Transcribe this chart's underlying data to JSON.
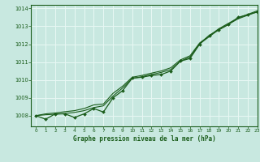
{
  "title": "Graphe pression niveau de la mer (hPa)",
  "bg_color": "#c8e8e0",
  "grid_color": "#e8f8f4",
  "line_color": "#1a5c1a",
  "xlim": [
    -0.5,
    23
  ],
  "ylim": [
    1007.4,
    1014.2
  ],
  "xticks": [
    0,
    1,
    2,
    3,
    4,
    5,
    6,
    7,
    8,
    9,
    10,
    11,
    12,
    13,
    14,
    15,
    16,
    17,
    18,
    19,
    20,
    21,
    22,
    23
  ],
  "yticks": [
    1008,
    1009,
    1010,
    1011,
    1012,
    1013,
    1014
  ],
  "x": [
    0,
    1,
    2,
    3,
    4,
    5,
    6,
    7,
    8,
    9,
    10,
    11,
    12,
    13,
    14,
    15,
    16,
    17,
    18,
    19,
    20,
    21,
    22,
    23
  ],
  "y_main": [
    1008.0,
    1007.8,
    1008.1,
    1008.1,
    1007.9,
    1008.1,
    1008.4,
    1008.2,
    1009.0,
    1009.4,
    1010.1,
    1010.15,
    1010.25,
    1010.3,
    1010.5,
    1011.05,
    1011.2,
    1012.0,
    1012.5,
    1012.8,
    1013.1,
    1013.5,
    1013.65,
    1013.8
  ],
  "y_smooth1": [
    1008.0,
    1008.05,
    1008.08,
    1008.12,
    1008.18,
    1008.28,
    1008.45,
    1008.55,
    1009.1,
    1009.55,
    1010.08,
    1010.18,
    1010.3,
    1010.42,
    1010.58,
    1011.05,
    1011.28,
    1012.02,
    1012.42,
    1012.82,
    1013.12,
    1013.42,
    1013.62,
    1013.82
  ],
  "y_smooth2": [
    1008.0,
    1008.1,
    1008.15,
    1008.22,
    1008.28,
    1008.4,
    1008.6,
    1008.65,
    1009.25,
    1009.65,
    1010.15,
    1010.25,
    1010.38,
    1010.5,
    1010.68,
    1011.12,
    1011.35,
    1012.07,
    1012.47,
    1012.87,
    1013.17,
    1013.47,
    1013.67,
    1013.87
  ]
}
